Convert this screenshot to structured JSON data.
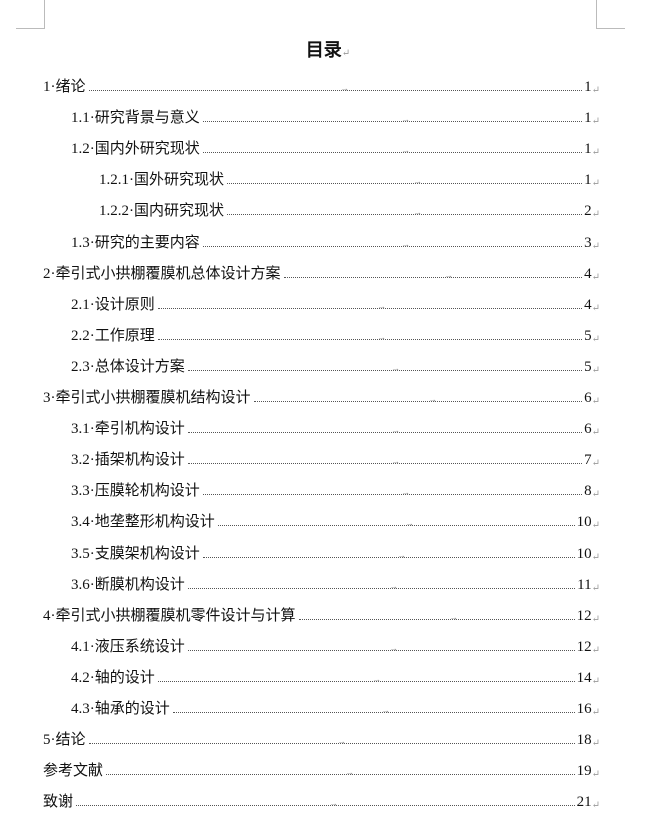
{
  "title": "目录",
  "entries": [
    {
      "label": "1·绪论",
      "page": "1",
      "level": 1
    },
    {
      "label": "1.1·研究背景与意义",
      "page": "1",
      "level": 2
    },
    {
      "label": "1.2·国内外研究现状",
      "page": "1",
      "level": 2
    },
    {
      "label": "1.2.1·国外研究现状",
      "page": "1",
      "level": 3
    },
    {
      "label": "1.2.2·国内研究现状",
      "page": "2",
      "level": 3
    },
    {
      "label": "1.3·研究的主要内容",
      "page": "3",
      "level": 2
    },
    {
      "label": "2·牵引式小拱棚覆膜机总体设计方案",
      "page": "4",
      "level": 1
    },
    {
      "label": "2.1·设计原则",
      "page": "4",
      "level": 2
    },
    {
      "label": "2.2·工作原理",
      "page": "5",
      "level": 2
    },
    {
      "label": "2.3·总体设计方案",
      "page": "5",
      "level": 2
    },
    {
      "label": "3·牵引式小拱棚覆膜机结构设计",
      "page": "6",
      "level": 1
    },
    {
      "label": "3.1·牵引机构设计",
      "page": "6",
      "level": 2
    },
    {
      "label": "3.2·插架机构设计",
      "page": "7",
      "level": 2
    },
    {
      "label": "3.3·压膜轮机构设计",
      "page": "8",
      "level": 2
    },
    {
      "label": "3.4·地垄整形机构设计",
      "page": "10",
      "level": 2
    },
    {
      "label": "3.5·支膜架机构设计",
      "page": "10",
      "level": 2
    },
    {
      "label": "3.6·断膜机构设计",
      "page": "11",
      "level": 2
    },
    {
      "label": "4·牵引式小拱棚覆膜机零件设计与计算",
      "page": "12",
      "level": 1
    },
    {
      "label": "4.1·液压系统设计",
      "page": "12",
      "level": 2
    },
    {
      "label": "4.2·轴的设计",
      "page": "14",
      "level": 2
    },
    {
      "label": "4.3·轴承的设计",
      "page": "16",
      "level": 2
    },
    {
      "label": "5·结论",
      "page": "18",
      "level": 1
    },
    {
      "label": "参考文献",
      "page": "19",
      "level": 1
    },
    {
      "label": "致谢",
      "page": "21",
      "level": 1
    }
  ]
}
